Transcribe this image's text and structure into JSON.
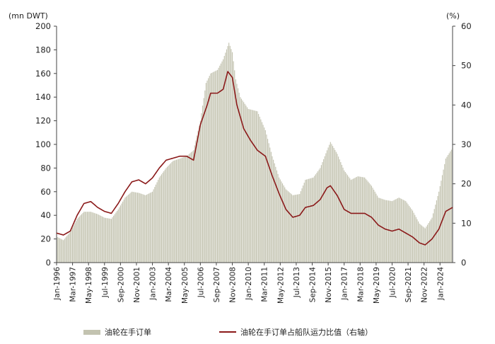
{
  "chart_data": {
    "type": "bar+line",
    "left_unit": "(mn DWT)",
    "right_unit": "(%)",
    "ylim_left": [
      0,
      200
    ],
    "ylim_right": [
      0,
      60
    ],
    "yticks_left": [
      0,
      20,
      40,
      60,
      80,
      100,
      120,
      140,
      160,
      180,
      200
    ],
    "yticks_right": [
      0,
      10,
      20,
      30,
      40,
      50,
      60
    ],
    "x_start": "1996-01",
    "x_end": "2024-12",
    "xtick_labels": [
      "Jan-1996",
      "Mar-1997",
      "May-1998",
      "Jul-1999",
      "Sep-2000",
      "Nov-2001",
      "Jan-2003",
      "Mar-2004",
      "May-2005",
      "Jul-2006",
      "Sep-2007",
      "Nov-2008",
      "Jan-2010",
      "Mar-2011",
      "May-2012",
      "Jul-2013",
      "Sep-2014",
      "Nov-2015",
      "Jan-2017",
      "Mar-2018",
      "May-2019",
      "Jul-2020",
      "Sep-2021",
      "Nov-2022",
      "Jan-2024"
    ],
    "series": [
      {
        "name": "油轮在手订单",
        "kind": "bar",
        "axis": "left",
        "color": "#c3c3b0",
        "points": [
          [
            "1996-01",
            22
          ],
          [
            "1996-07",
            19
          ],
          [
            "1997-01",
            26
          ],
          [
            "1997-07",
            37
          ],
          [
            "1998-01",
            43
          ],
          [
            "1998-07",
            43
          ],
          [
            "1999-01",
            41
          ],
          [
            "1999-07",
            38
          ],
          [
            "2000-01",
            37
          ],
          [
            "2000-07",
            45
          ],
          [
            "2001-01",
            55
          ],
          [
            "2001-07",
            60
          ],
          [
            "2002-01",
            59
          ],
          [
            "2002-07",
            57
          ],
          [
            "2003-01",
            60
          ],
          [
            "2003-07",
            72
          ],
          [
            "2004-01",
            80
          ],
          [
            "2004-07",
            86
          ],
          [
            "2005-01",
            88
          ],
          [
            "2005-07",
            90
          ],
          [
            "2006-01",
            95
          ],
          [
            "2006-07",
            120
          ],
          [
            "2006-12",
            152
          ],
          [
            "2007-04",
            160
          ],
          [
            "2007-10",
            163
          ],
          [
            "2008-03",
            172
          ],
          [
            "2008-08",
            186
          ],
          [
            "2008-11",
            178
          ],
          [
            "2009-02",
            155
          ],
          [
            "2009-06",
            140
          ],
          [
            "2010-01",
            130
          ],
          [
            "2010-09",
            128
          ],
          [
            "2011-04",
            112
          ],
          [
            "2011-10",
            90
          ],
          [
            "2012-04",
            72
          ],
          [
            "2012-10",
            62
          ],
          [
            "2013-04",
            57
          ],
          [
            "2013-10",
            58
          ],
          [
            "2014-03",
            70
          ],
          [
            "2014-10",
            72
          ],
          [
            "2015-04",
            80
          ],
          [
            "2015-10",
            95
          ],
          [
            "2016-01",
            102
          ],
          [
            "2016-07",
            92
          ],
          [
            "2017-01",
            78
          ],
          [
            "2017-07",
            70
          ],
          [
            "2018-01",
            73
          ],
          [
            "2018-07",
            72
          ],
          [
            "2019-01",
            65
          ],
          [
            "2019-07",
            55
          ],
          [
            "2020-01",
            53
          ],
          [
            "2020-07",
            52
          ],
          [
            "2021-01",
            55
          ],
          [
            "2021-07",
            52
          ],
          [
            "2022-01",
            44
          ],
          [
            "2022-07",
            33
          ],
          [
            "2022-12",
            29
          ],
          [
            "2023-06",
            38
          ],
          [
            "2023-12",
            60
          ],
          [
            "2024-06",
            88
          ],
          [
            "2024-12",
            97
          ]
        ]
      },
      {
        "name": "油轮在手订单占船队运力比值（右轴）",
        "kind": "line",
        "axis": "right",
        "color": "#8b1a1a",
        "points": [
          [
            "1996-01",
            7.5
          ],
          [
            "1996-07",
            7.0
          ],
          [
            "1997-01",
            8.0
          ],
          [
            "1997-07",
            12.0
          ],
          [
            "1998-01",
            15.0
          ],
          [
            "1998-07",
            15.5
          ],
          [
            "1999-01",
            14.0
          ],
          [
            "1999-07",
            13.0
          ],
          [
            "2000-01",
            12.5
          ],
          [
            "2000-07",
            15.0
          ],
          [
            "2001-01",
            18.0
          ],
          [
            "2001-07",
            20.5
          ],
          [
            "2002-01",
            21.0
          ],
          [
            "2002-07",
            20.0
          ],
          [
            "2003-01",
            21.5
          ],
          [
            "2003-07",
            24.0
          ],
          [
            "2004-01",
            26.0
          ],
          [
            "2004-07",
            26.5
          ],
          [
            "2005-01",
            27.0
          ],
          [
            "2005-07",
            27.0
          ],
          [
            "2006-01",
            26.0
          ],
          [
            "2006-07",
            35.0
          ],
          [
            "2007-01",
            40.0
          ],
          [
            "2007-04",
            43.0
          ],
          [
            "2007-10",
            43.0
          ],
          [
            "2008-03",
            44.0
          ],
          [
            "2008-07",
            48.5
          ],
          [
            "2008-11",
            47.0
          ],
          [
            "2009-03",
            40.0
          ],
          [
            "2009-09",
            34.0
          ],
          [
            "2010-03",
            31.0
          ],
          [
            "2010-09",
            28.5
          ],
          [
            "2011-04",
            27.0
          ],
          [
            "2011-10",
            22.0
          ],
          [
            "2012-04",
            17.5
          ],
          [
            "2012-10",
            13.5
          ],
          [
            "2013-04",
            11.5
          ],
          [
            "2013-10",
            12.0
          ],
          [
            "2014-03",
            14.0
          ],
          [
            "2014-10",
            14.5
          ],
          [
            "2015-04",
            16.0
          ],
          [
            "2015-10",
            19.0
          ],
          [
            "2016-01",
            19.5
          ],
          [
            "2016-07",
            17.0
          ],
          [
            "2017-01",
            13.5
          ],
          [
            "2017-07",
            12.5
          ],
          [
            "2018-01",
            12.5
          ],
          [
            "2018-07",
            12.5
          ],
          [
            "2019-01",
            11.5
          ],
          [
            "2019-07",
            9.5
          ],
          [
            "2020-01",
            8.5
          ],
          [
            "2020-07",
            8.0
          ],
          [
            "2021-01",
            8.5
          ],
          [
            "2021-07",
            7.5
          ],
          [
            "2022-01",
            6.5
          ],
          [
            "2022-07",
            5.0
          ],
          [
            "2022-12",
            4.5
          ],
          [
            "2023-06",
            6.0
          ],
          [
            "2023-12",
            8.5
          ],
          [
            "2024-06",
            13.0
          ],
          [
            "2024-12",
            14.0
          ]
        ]
      }
    ]
  }
}
